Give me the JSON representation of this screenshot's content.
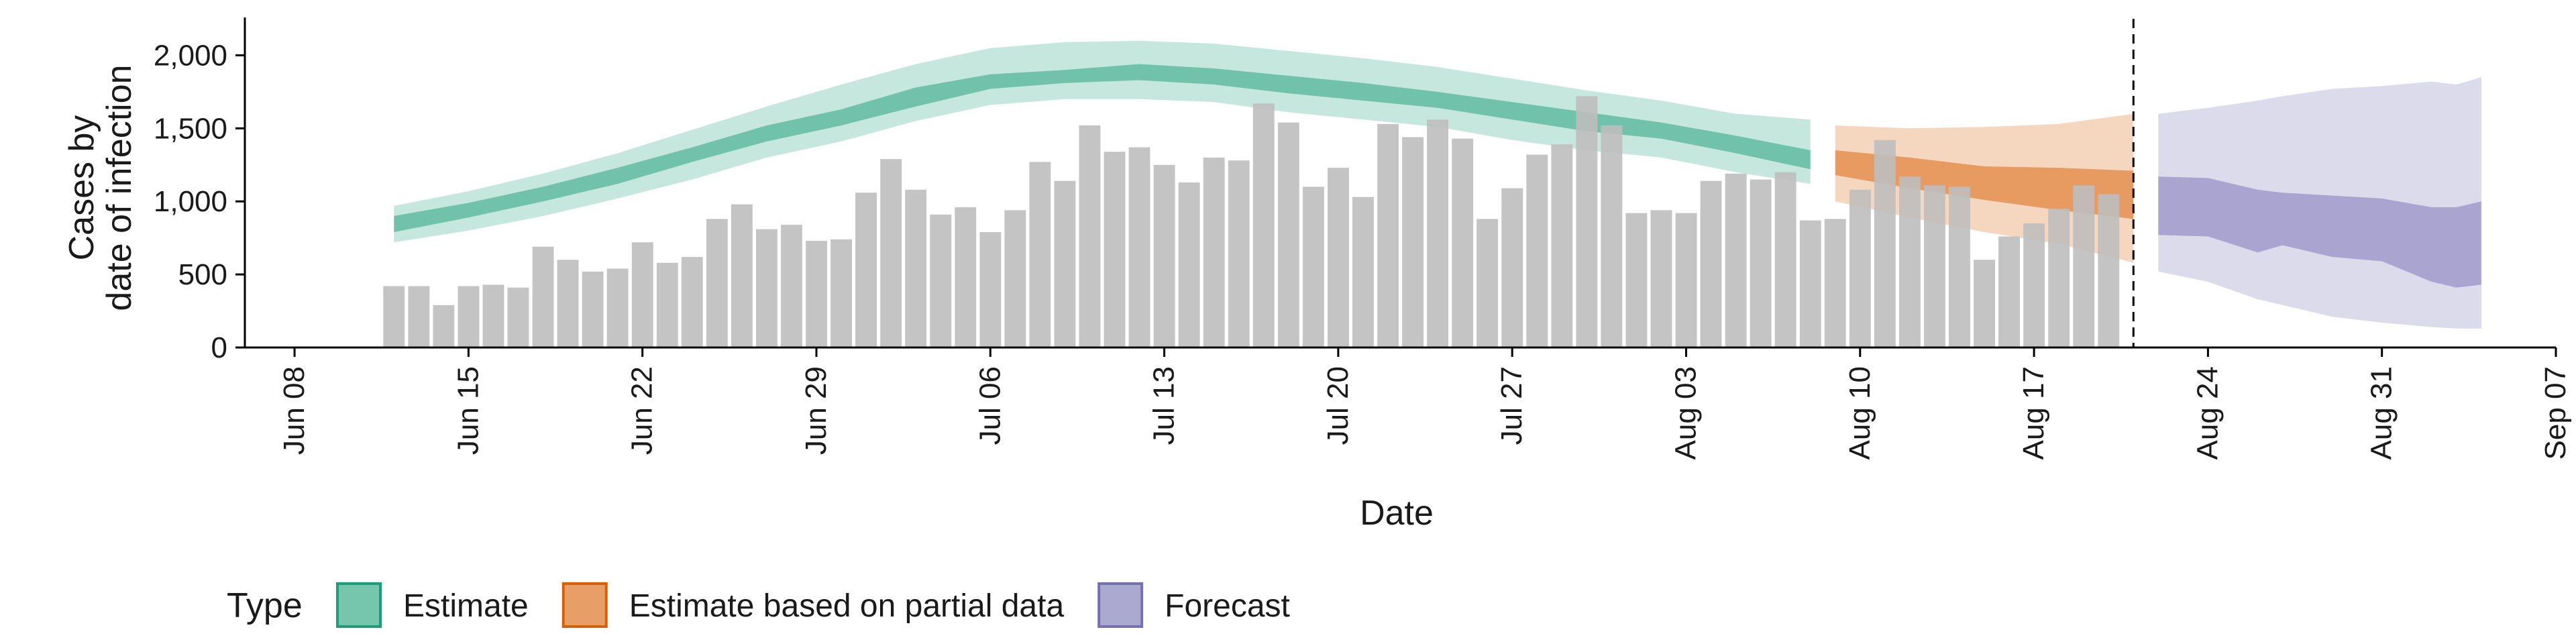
{
  "chart_data": {
    "type": "bar",
    "xlabel": "Date",
    "ylabel_lines": [
      "Cases by",
      "date of infection"
    ],
    "x_range": [
      "2020-06-06",
      "2020-09-07"
    ],
    "ylim": [
      0,
      2250
    ],
    "y_ticks": [
      0,
      500,
      1000,
      1500,
      2000
    ],
    "y_tick_labels": [
      "0",
      "500",
      "1,000",
      "1,500",
      "2,000"
    ],
    "x_ticks": [
      "2020-06-08",
      "2020-06-15",
      "2020-06-22",
      "2020-06-29",
      "2020-07-06",
      "2020-07-13",
      "2020-07-20",
      "2020-07-27",
      "2020-08-03",
      "2020-08-10",
      "2020-08-17",
      "2020-08-24",
      "2020-08-31",
      "2020-09-07"
    ],
    "x_tick_labels": [
      "Jun 08",
      "Jun 15",
      "Jun 22",
      "Jun 29",
      "Jul 06",
      "Jul 13",
      "Jul 20",
      "Jul 27",
      "Aug 03",
      "Aug 10",
      "Aug 17",
      "Aug 24",
      "Aug 31",
      "Sep 07"
    ],
    "vline_date": "2020-08-21",
    "bars": {
      "start_date": "2020-06-12",
      "color": "#bebebe",
      "values": [
        420,
        420,
        290,
        420,
        430,
        410,
        690,
        600,
        520,
        540,
        720,
        580,
        620,
        880,
        980,
        810,
        840,
        730,
        740,
        1060,
        1290,
        1080,
        910,
        960,
        790,
        940,
        1270,
        1140,
        1520,
        1340,
        1370,
        1250,
        1130,
        1300,
        1280,
        1670,
        1540,
        1100,
        1230,
        1030,
        1530,
        1440,
        1560,
        1430,
        880,
        1090,
        1320,
        1390,
        1720,
        1520,
        920,
        940,
        920,
        1140,
        1190,
        1150,
        1200,
        870,
        880,
        1080,
        1420,
        1170,
        1110,
        1100,
        600,
        760,
        850,
        950,
        1110,
        1050
      ]
    },
    "legend": {
      "title": "Type",
      "position": "bottom",
      "items": [
        {
          "label": "Estimate",
          "fill": "#1b9e77",
          "border": "#1b9e77"
        },
        {
          "label": "Estimate based on partial data",
          "fill": "#d95f02",
          "border": "#d95f02"
        },
        {
          "label": "Forecast",
          "fill": "#7570b3",
          "border": "#7570b3"
        }
      ]
    },
    "bands": [
      {
        "type": "Estimate",
        "color": "#1b9e77",
        "dates": [
          "2020-06-12",
          "2020-06-15",
          "2020-06-18",
          "2020-06-21",
          "2020-06-24",
          "2020-06-27",
          "2020-06-30",
          "2020-07-03",
          "2020-07-06",
          "2020-07-09",
          "2020-07-12",
          "2020-07-15",
          "2020-07-18",
          "2020-07-21",
          "2020-07-24",
          "2020-07-27",
          "2020-07-30",
          "2020-08-02",
          "2020-08-05",
          "2020-08-08"
        ],
        "inner_lower": [
          790,
          890,
          1000,
          1120,
          1270,
          1410,
          1520,
          1650,
          1770,
          1810,
          1830,
          1800,
          1740,
          1690,
          1640,
          1560,
          1480,
          1430,
          1330,
          1220
        ],
        "inner_upper": [
          900,
          990,
          1100,
          1230,
          1370,
          1520,
          1630,
          1780,
          1870,
          1900,
          1940,
          1910,
          1860,
          1810,
          1750,
          1680,
          1610,
          1540,
          1450,
          1350
        ],
        "outer_lower": [
          720,
          800,
          900,
          1020,
          1150,
          1300,
          1410,
          1550,
          1660,
          1700,
          1700,
          1680,
          1610,
          1560,
          1510,
          1420,
          1350,
          1300,
          1200,
          1120
        ],
        "outer_upper": [
          970,
          1070,
          1190,
          1330,
          1490,
          1650,
          1800,
          1940,
          2050,
          2090,
          2100,
          2080,
          2030,
          1980,
          1920,
          1840,
          1760,
          1690,
          1600,
          1560
        ]
      },
      {
        "type": "Estimate based on partial data",
        "color": "#d95f02",
        "dates": [
          "2020-08-09",
          "2020-08-12",
          "2020-08-15",
          "2020-08-18",
          "2020-08-21"
        ],
        "inner_lower": [
          1180,
          1090,
          1010,
          940,
          880
        ],
        "inner_upper": [
          1350,
          1300,
          1240,
          1230,
          1210
        ],
        "outer_lower": [
          1000,
          890,
          790,
          710,
          580
        ],
        "outer_upper": [
          1520,
          1500,
          1510,
          1530,
          1600
        ]
      },
      {
        "type": "Forecast",
        "color": "#7570b3",
        "dates": [
          "2020-08-22",
          "2020-08-24",
          "2020-08-26",
          "2020-08-27",
          "2020-08-29",
          "2020-08-31",
          "2020-09-02",
          "2020-09-03",
          "2020-09-04"
        ],
        "inner_lower": [
          770,
          760,
          650,
          700,
          620,
          590,
          450,
          410,
          430
        ],
        "inner_upper": [
          1170,
          1160,
          1080,
          1060,
          1040,
          1020,
          960,
          960,
          1000
        ],
        "outer_lower": [
          520,
          450,
          330,
          290,
          210,
          170,
          140,
          130,
          130
        ],
        "outer_upper": [
          1600,
          1640,
          1690,
          1720,
          1770,
          1790,
          1820,
          1800,
          1850
        ]
      }
    ]
  }
}
